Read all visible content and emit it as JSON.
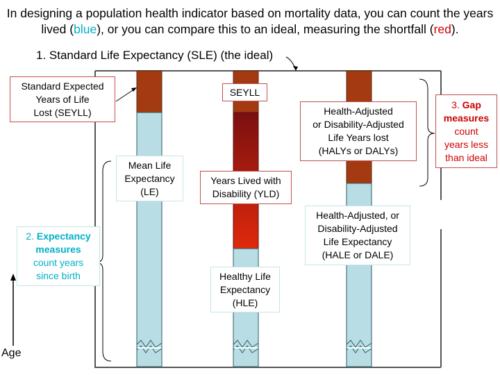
{
  "intro": {
    "part1": "In designing a population health indicator based on mortality data, you can count the years lived (",
    "blue_word": "blue",
    "part2": "), or you can compare this to an ideal, measuring the shortfall (",
    "red_word": "red",
    "part3": ")."
  },
  "heading": "1. Standard Life Expectancy (SLE) (the ideal)",
  "labels": {
    "seyll_box": [
      "Standard Expected",
      "Years of Life",
      "Lost (SEYLL)"
    ],
    "seyll_short": "SEYLL",
    "halys": [
      "Health-Adjusted",
      "or Disability-Adjusted",
      "Life Years lost",
      "(HALYs or DALYs)"
    ],
    "gap": {
      "number": "3. ",
      "bold": "Gap measures",
      "rest": [
        "count",
        "years less",
        "than ideal"
      ]
    },
    "mean_le": [
      "Mean Life",
      "Expectancy",
      "(LE)"
    ],
    "yld": [
      "Years Lived with",
      "Disability (YLD)"
    ],
    "hale": [
      "Health-Adjusted, or",
      "Disability-Adjusted",
      "Life Expectancy",
      "(HALE or DALE)"
    ],
    "expectancy": {
      "number": "2. ",
      "bold": "Expectancy measures",
      "rest": [
        "count years",
        "since birth"
      ]
    },
    "hle": [
      "Healthy Life",
      "Expectancy",
      "(HLE)"
    ]
  },
  "axis_label": "Age",
  "colors": {
    "blue_fill": "#b8dde4",
    "red_dark": "#a33a12",
    "yld_top": "#7a1010",
    "yld_bottom": "#e0290c",
    "text_blue": "#00b0c8",
    "text_red": "#cc0000"
  }
}
